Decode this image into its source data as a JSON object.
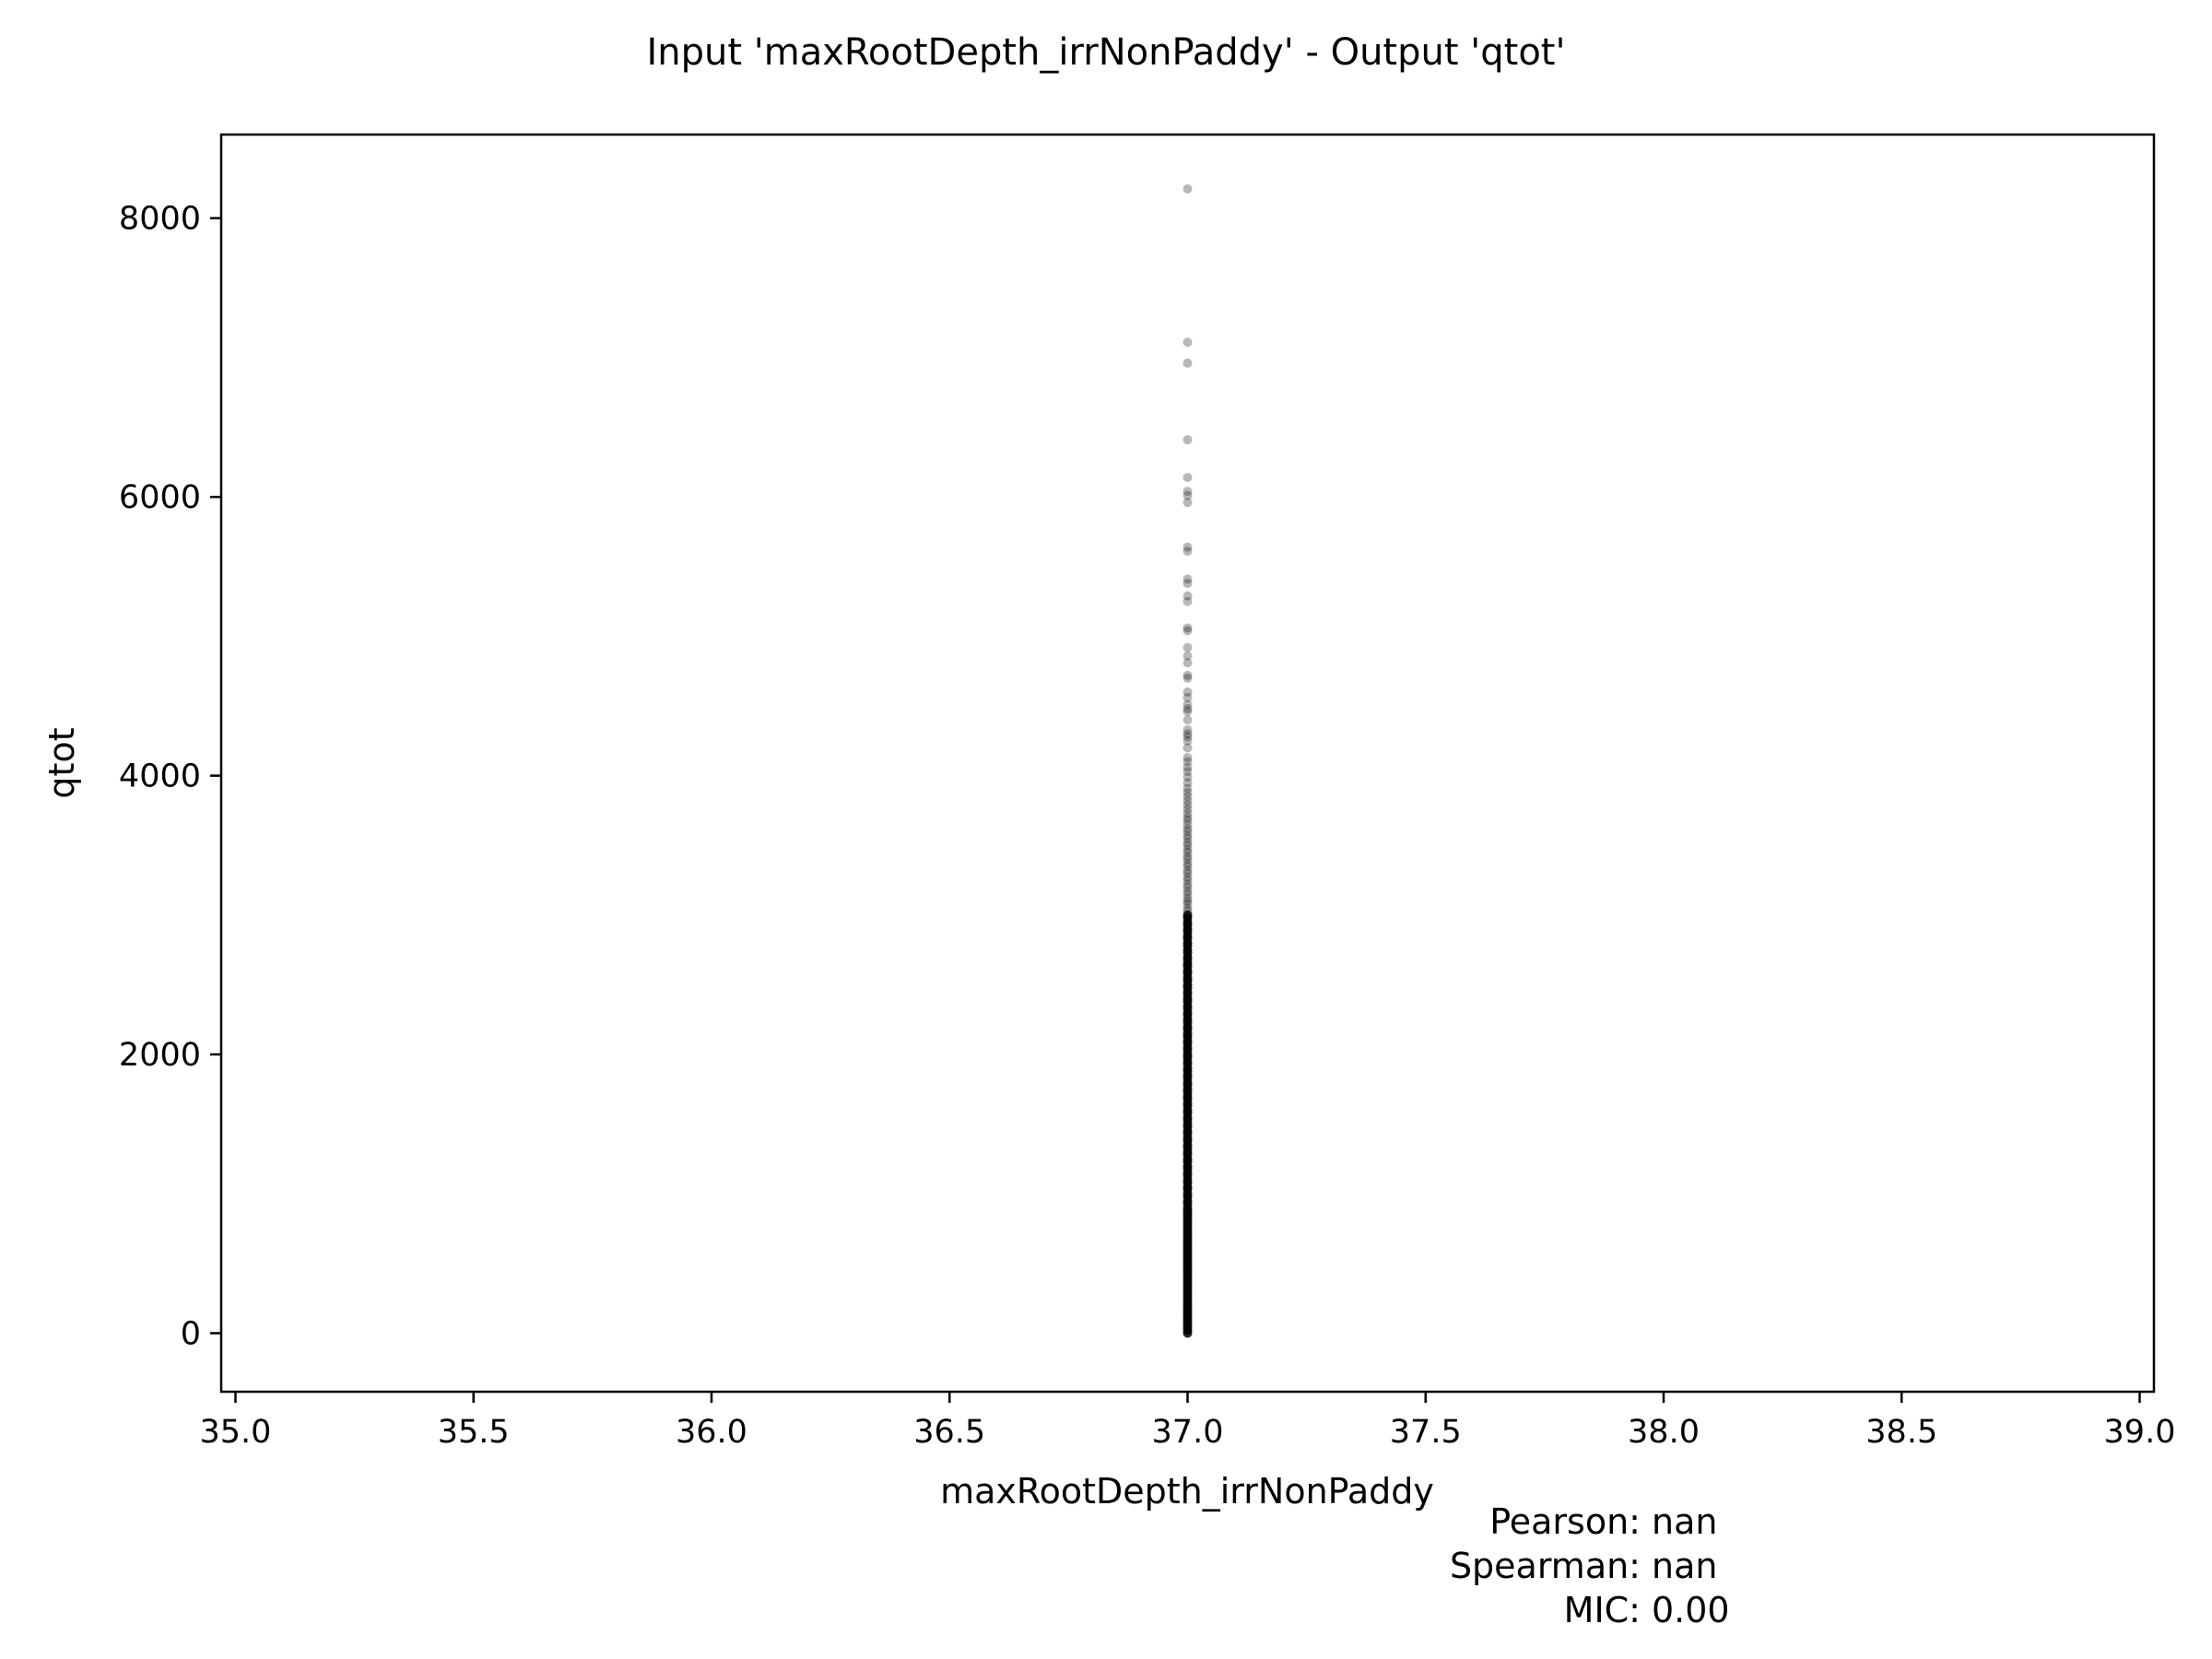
{
  "chart_data": {
    "type": "scatter",
    "title": "Input 'maxRootDepth_irrNonPaddy' - Output 'qtot'",
    "xlabel": "maxRootDepth_irrNonPaddy",
    "ylabel": "qtot",
    "xlim": [
      34.97,
      39.03
    ],
    "ylim": [
      -420,
      8600
    ],
    "x_ticks": [
      35.0,
      35.5,
      36.0,
      36.5,
      37.0,
      37.5,
      38.0,
      38.5,
      39.0
    ],
    "x_tick_labels": [
      "35.0",
      "35.5",
      "36.0",
      "36.5",
      "37.0",
      "37.5",
      "38.0",
      "38.5",
      "39.0"
    ],
    "y_ticks": [
      0,
      2000,
      4000,
      6000,
      8000
    ],
    "y_tick_labels": [
      "0",
      "2000",
      "4000",
      "6000",
      "8000"
    ],
    "grid": false,
    "legend": "none",
    "marker_color": "#000000",
    "series": [
      {
        "x_constant": 37.0,
        "y": [
          8210,
          7110,
          6960,
          6410,
          6140,
          6040,
          6010,
          5960,
          5640,
          5610,
          5410,
          5380,
          5290,
          5250,
          5060,
          5040,
          4920,
          4860,
          4810,
          4720,
          4700,
          4600,
          4560,
          4510,
          4480,
          4460,
          4400,
          4330,
          4300,
          4280,
          4250,
          4200,
          4130,
          4100,
          4060,
          4030,
          3990,
          3950,
          3910,
          3880,
          3850,
          3820,
          3790,
          3760,
          3730,
          3700,
          3680,
          3650,
          3620,
          3600,
          3570,
          3550,
          3520,
          3500,
          3470,
          3450,
          3420,
          3400,
          3370,
          3350,
          3320,
          3300,
          3270,
          3250,
          3220,
          3200,
          3170,
          3150,
          3120,
          3100,
          3080,
          3050,
          3030,
          3000,
          2980,
          2950,
          2930,
          2900,
          2880,
          2850,
          2830,
          2800,
          2780,
          2750,
          2730,
          2700,
          2680,
          2650,
          2630,
          2600,
          2580,
          2550,
          2530,
          2500,
          2480,
          2450,
          2430,
          2400,
          2380,
          2350,
          2330,
          2300,
          2280,
          2250,
          2230,
          2200,
          2180,
          2150,
          2130,
          2100,
          2080,
          2050,
          2030,
          2000,
          1980,
          1950,
          1930,
          1900,
          1880,
          1850,
          1830,
          1800,
          1780,
          1750,
          1730,
          1700,
          1680,
          1650,
          1630,
          1600,
          1580,
          1550,
          1530,
          1500,
          1480,
          1450,
          1430,
          1400,
          1380,
          1350,
          1330,
          1300,
          1280,
          1250,
          1230,
          1200,
          1180,
          1150,
          1130,
          1100,
          1080,
          1050,
          1030,
          1000,
          980,
          950,
          930,
          900,
          880,
          860,
          840,
          820,
          800,
          780,
          760,
          740,
          720,
          700,
          680,
          660,
          640,
          620,
          600,
          580,
          560,
          540,
          520,
          500,
          480,
          460,
          440,
          420,
          400,
          380,
          360,
          340,
          320,
          300,
          280,
          260,
          240,
          220,
          200,
          180,
          160,
          140,
          120,
          100,
          80,
          60,
          40,
          20,
          0
        ]
      }
    ],
    "stats": [
      {
        "label": "Pearson:",
        "value": "nan"
      },
      {
        "label": "Spearman:",
        "value": "nan"
      },
      {
        "label": "MIC:",
        "value": "0.00"
      }
    ]
  }
}
